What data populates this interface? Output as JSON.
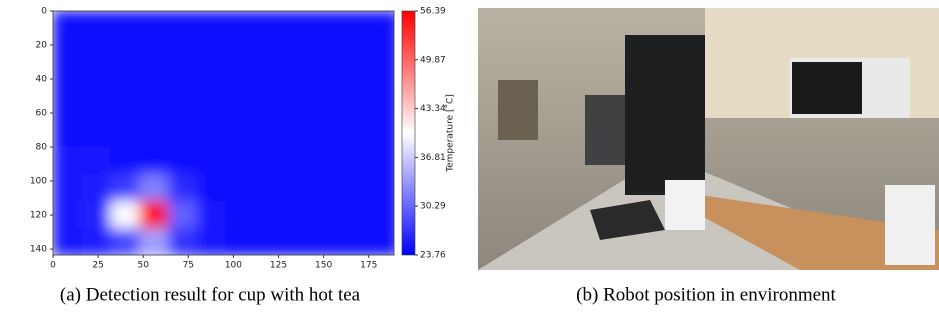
{
  "chart_data": [
    {
      "type": "heatmap",
      "colorbar_label": "Temperature [˚C]",
      "colormap": [
        "#0000ff",
        "#ffffff",
        "#ff0000"
      ],
      "xlim": [
        0,
        189
      ],
      "xticks": [
        0,
        25,
        50,
        75,
        100,
        125,
        150,
        175
      ],
      "ylim": [
        0,
        143.5
      ],
      "y_inverted": true,
      "yticks": [
        0,
        20,
        40,
        60,
        80,
        100,
        120,
        140
      ],
      "clim": [
        23.76,
        56.39
      ],
      "cticks": [
        23.76,
        30.29,
        36.81,
        43.34,
        49.87,
        56.39
      ],
      "cell_size": 16,
      "z": [
        [
          24.5,
          24.6,
          24.5,
          24.4,
          24.5,
          24.6,
          24.5,
          24.4,
          24.5,
          24.6,
          24.5,
          24.4
        ],
        [
          24.6,
          24.5,
          24.4,
          24.5,
          24.6,
          24.5,
          24.4,
          24.5,
          24.6,
          24.5,
          24.4,
          24.5
        ],
        [
          24.5,
          24.4,
          24.6,
          24.5,
          24.4,
          24.6,
          24.5,
          24.4,
          24.6,
          24.5,
          24.4,
          24.6
        ],
        [
          24.7,
          24.6,
          24.5,
          24.4,
          24.6,
          24.5,
          24.7,
          24.8,
          24.5,
          24.4,
          24.6,
          24.5
        ],
        [
          24.6,
          24.7,
          24.6,
          24.5,
          24.4,
          24.6,
          24.5,
          24.6,
          24.5,
          24.6,
          24.5,
          24.4
        ],
        [
          25.0,
          24.9,
          24.8,
          24.7,
          24.6,
          24.5,
          24.6,
          24.5,
          24.4,
          24.5,
          24.6,
          24.5
        ],
        [
          25.2,
          25.4,
          27.5,
          32.0,
          26.5,
          24.8,
          24.7,
          24.6,
          24.5,
          24.6,
          24.5,
          24.6
        ],
        [
          25.3,
          26.0,
          40.0,
          56.39,
          30.0,
          25.0,
          24.8,
          24.6,
          24.5,
          24.4,
          24.5,
          24.6
        ],
        [
          25.1,
          25.4,
          28.0,
          34.0,
          27.0,
          25.0,
          24.7,
          24.6,
          24.5,
          24.6,
          24.5,
          24.4
        ]
      ]
    }
  ],
  "figure": {
    "captions": [
      "(a) Detection result for cup with hot tea",
      "(b) Robot position in environment"
    ]
  }
}
